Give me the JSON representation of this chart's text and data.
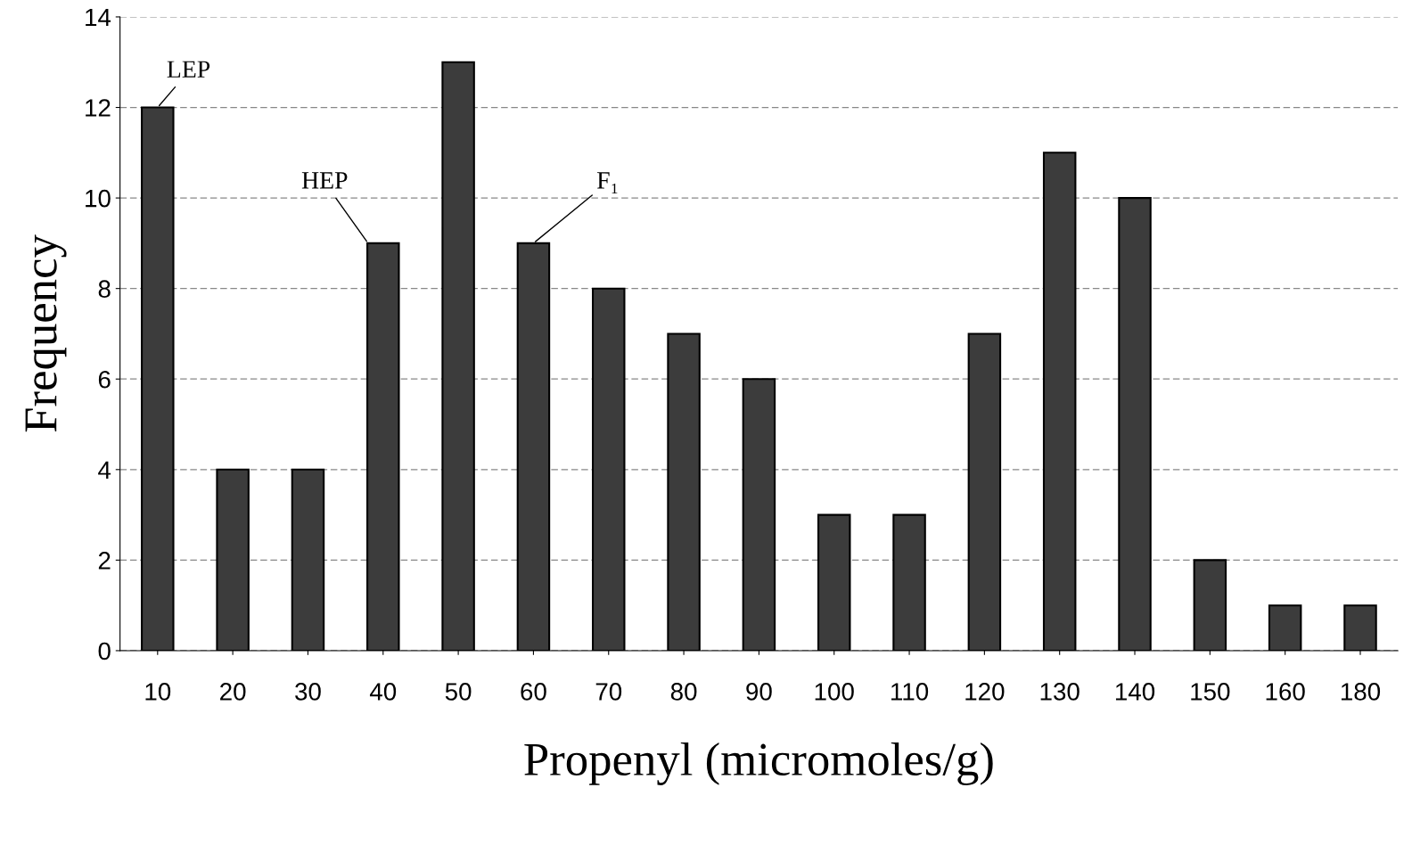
{
  "chart_data": {
    "type": "bar",
    "xlabel": "Propenyl (micromoles/g)",
    "ylabel": "Frequency",
    "categories": [
      "10",
      "20",
      "30",
      "40",
      "50",
      "60",
      "70",
      "80",
      "90",
      "100",
      "110",
      "120",
      "130",
      "140",
      "150",
      "160",
      "180"
    ],
    "values": [
      12,
      4,
      4,
      9,
      13,
      9,
      8,
      7,
      6,
      3,
      3,
      7,
      11,
      10,
      2,
      1,
      1
    ],
    "color": "#3c3c3c",
    "ylim": [
      0,
      14
    ],
    "yticks": [
      0,
      2,
      4,
      6,
      8,
      10,
      12,
      14
    ],
    "grid": "y",
    "annotations": [
      {
        "text": "LEP",
        "x": "10",
        "y": 12
      },
      {
        "text": "HEP",
        "x": "40",
        "y": 9
      },
      {
        "text": "F₁",
        "x": "60",
        "y": 9
      }
    ]
  }
}
